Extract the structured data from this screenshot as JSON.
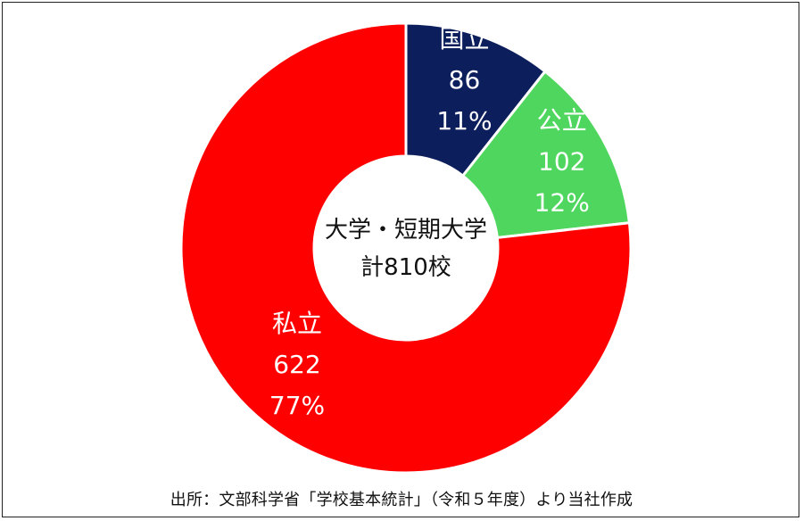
{
  "chart_data": {
    "type": "pie",
    "donut": true,
    "center_label": [
      "大学・短期大学",
      "計810校"
    ],
    "series": [
      {
        "name": "国立",
        "value": 86,
        "percent": "11%",
        "color": "#0c1f5c",
        "label_color": "#ffffff"
      },
      {
        "name": "公立",
        "value": 102,
        "percent": "12%",
        "color": "#4fd65e",
        "label_color": "#ffffff"
      },
      {
        "name": "私立",
        "value": 622,
        "percent": "77%",
        "color": "#ff0000",
        "label_color": "#ffffff"
      }
    ],
    "start_angle_deg": 0,
    "direction": "clockwise",
    "separator_color": "#ffffff"
  },
  "source_note": "出所：文部科学省「学校基本統計」（令和５年度）より当社作成"
}
